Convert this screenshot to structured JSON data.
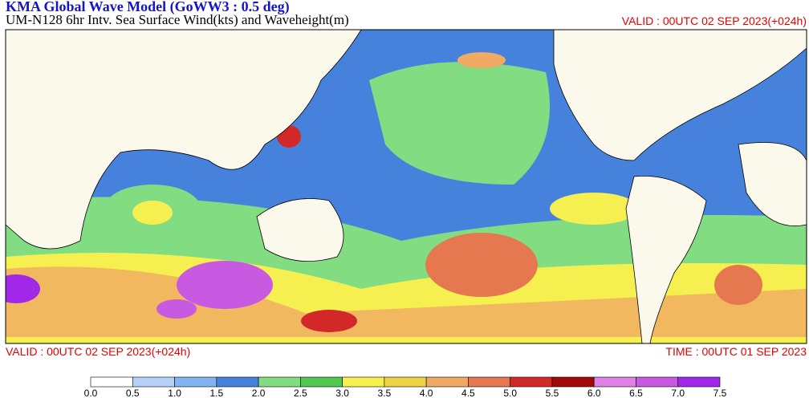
{
  "header": {
    "title": "KMA  Global Wave Model (GoWW3 : 0.5 deg)",
    "subtitle": "UM-N128  6hr Intv. Sea Surface Wind(kts) and Waveheight(m)",
    "valid_top": "VALID : 00UTC 02 SEP 2023(+024h)"
  },
  "footer": {
    "valid": "VALID : 00UTC 02 SEP 2023(+024h)",
    "time": "TIME : 00UTC 01 SEP 2023"
  },
  "legend": {
    "labels": [
      "0.0",
      "0.5",
      "1.0",
      "1.5",
      "2.0",
      "2.5",
      "3.0",
      "3.5",
      "4.0",
      "4.5",
      "5.0",
      "5.5",
      "6.0",
      "6.5",
      "7.0",
      "7.5"
    ],
    "colors": [
      "#ffffff",
      "#b4d2f5",
      "#82b4f0",
      "#4682dc",
      "#82dc82",
      "#50c850",
      "#f5f050",
      "#f0d246",
      "#f0aa64",
      "#e67850",
      "#d22828",
      "#a00a0a",
      "#e182e6",
      "#c85ae1",
      "#a028e6"
    ]
  }
}
